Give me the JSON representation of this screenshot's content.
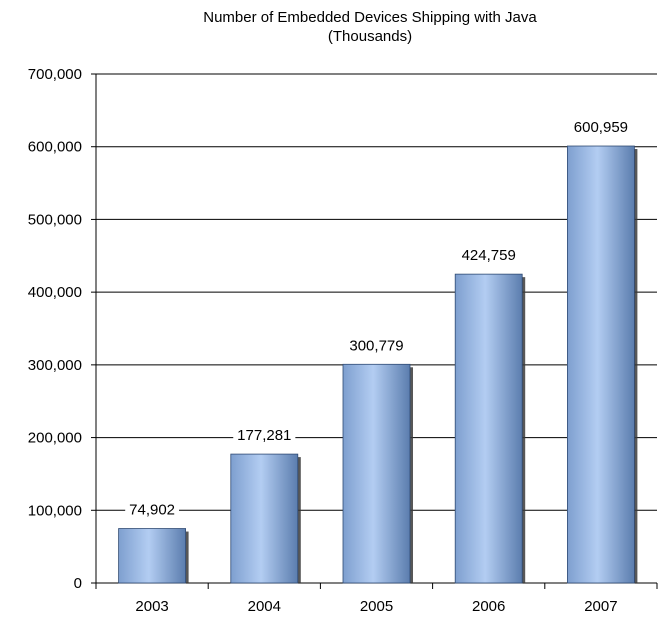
{
  "chart_data": {
    "type": "bar",
    "title": "Number of Embedded Devices Shipping with Java",
    "subtitle": "(Thousands)",
    "categories": [
      "2003",
      "2004",
      "2005",
      "2006",
      "2007"
    ],
    "values": [
      74902,
      177281,
      300779,
      424759,
      600959
    ],
    "value_labels": [
      "74,902",
      "177,281",
      "300,779",
      "424,759",
      "600,959"
    ],
    "ylim": [
      0,
      700000
    ],
    "yticks": [
      0,
      100000,
      200000,
      300000,
      400000,
      500000,
      600000,
      700000
    ],
    "ytick_labels": [
      "0",
      "100,000",
      "200,000",
      "300,000",
      "400,000",
      "500,000",
      "600,000",
      "700,000"
    ],
    "grid": true,
    "legend": "none",
    "colors": {
      "bar_light": "#a9c6ee",
      "bar_mid": "#8aaddc",
      "bar_dark": "#5d7fae",
      "gridline": "#000000"
    }
  }
}
